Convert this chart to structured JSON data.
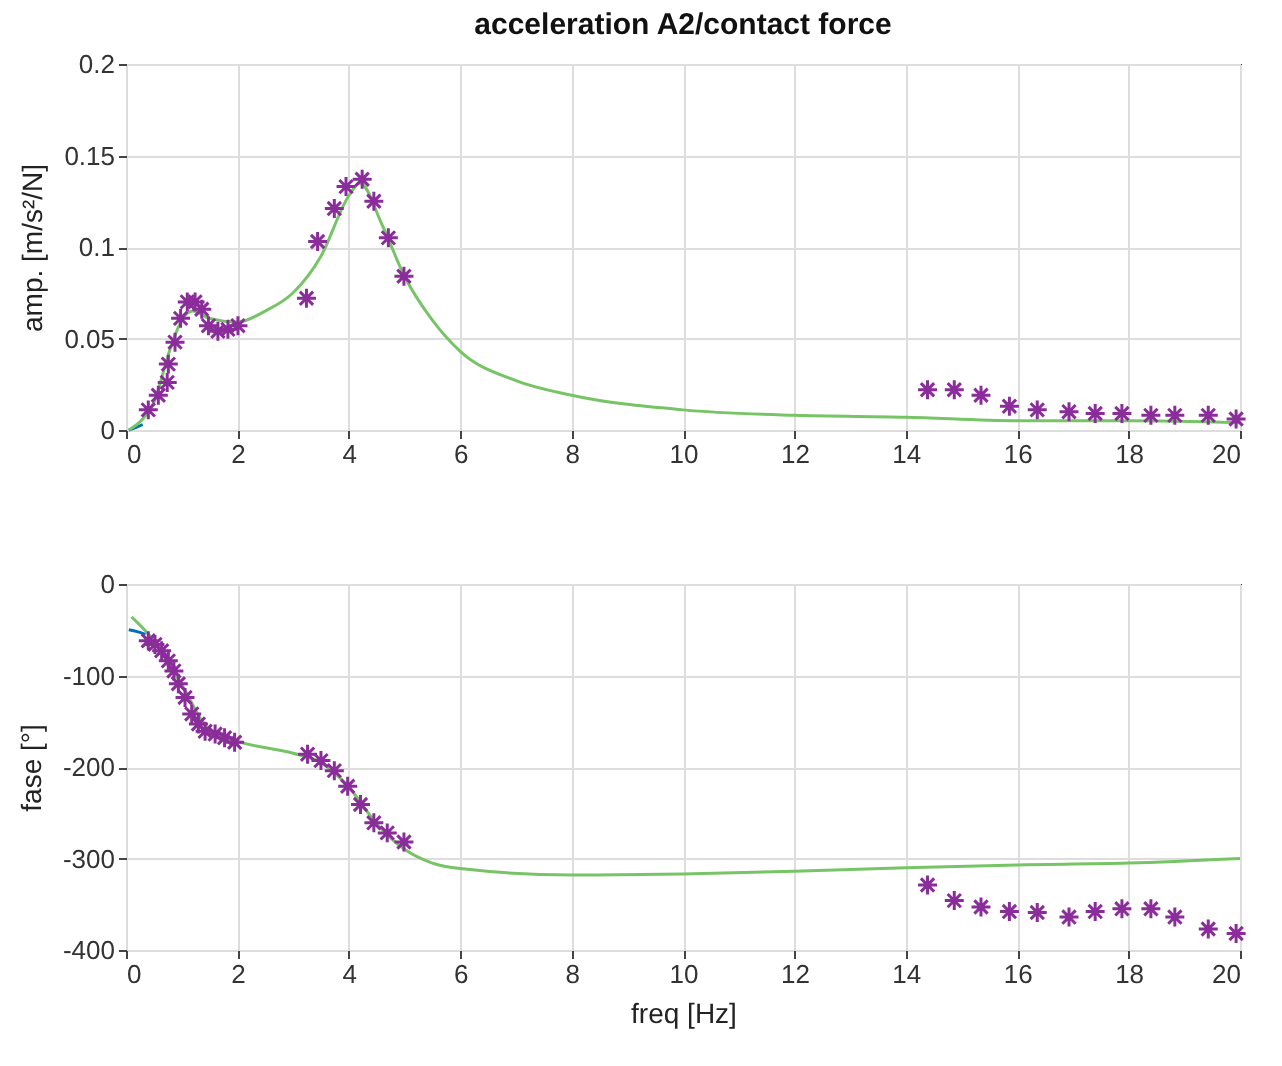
{
  "chart_data": [
    {
      "type": "line",
      "title": "acceleration A2/contact force",
      "ylabel": "amp. [m/s²/N]",
      "xlim": [
        0,
        20
      ],
      "ylim": [
        0,
        0.2
      ],
      "xticks": [
        0,
        2,
        4,
        6,
        8,
        10,
        12,
        14,
        16,
        18,
        20
      ],
      "yticks": [
        0,
        0.05,
        0.1,
        0.15,
        0.2
      ],
      "grid": true,
      "series": [
        {
          "type": "line",
          "color": "#0072bd",
          "x": [
            0.05,
            0.15,
            0.3
          ],
          "values": [
            0.0,
            0.001,
            0.003
          ]
        },
        {
          "type": "line",
          "color": "#77c466",
          "x": [
            0.05,
            0.3,
            0.5,
            0.8,
            1.0,
            1.2,
            1.5,
            2.0,
            2.5,
            3.0,
            3.5,
            4.0,
            4.2,
            4.6,
            5.0,
            5.5,
            6.0,
            7.0,
            8.0,
            10.0,
            12.0,
            14.0,
            16.0,
            18.0,
            20.0
          ],
          "values": [
            0.0,
            0.006,
            0.015,
            0.045,
            0.06,
            0.065,
            0.061,
            0.059,
            0.065,
            0.075,
            0.095,
            0.128,
            0.135,
            0.112,
            0.084,
            0.06,
            0.043,
            0.027,
            0.019,
            0.011,
            0.008,
            0.007,
            0.005,
            0.005,
            0.004
          ]
        },
        {
          "type": "scatter",
          "marker": "cross",
          "color": "#8a2d9a",
          "x": [
            0.4,
            0.58,
            0.74,
            0.76,
            0.88,
            0.98,
            1.1,
            1.24,
            1.36,
            1.48,
            1.65,
            1.83,
            2.01,
            3.24,
            3.44,
            3.74,
            3.95,
            4.24,
            4.45,
            4.71,
            4.99,
            14.39,
            14.87,
            15.35,
            15.86,
            16.36,
            16.93,
            17.4,
            17.88,
            18.4,
            18.83,
            19.43,
            19.93
          ],
          "values": [
            0.011,
            0.019,
            0.026,
            0.036,
            0.048,
            0.061,
            0.07,
            0.07,
            0.066,
            0.057,
            0.054,
            0.055,
            0.057,
            0.072,
            0.103,
            0.121,
            0.133,
            0.137,
            0.125,
            0.105,
            0.084,
            0.022,
            0.022,
            0.019,
            0.013,
            0.011,
            0.01,
            0.009,
            0.009,
            0.008,
            0.008,
            0.008,
            0.006
          ]
        }
      ]
    },
    {
      "type": "line",
      "xlabel": "freq [Hz]",
      "ylabel": "fase [°]",
      "xlim": [
        0,
        20
      ],
      "ylim": [
        -400,
        0
      ],
      "xticks": [
        0,
        2,
        4,
        6,
        8,
        10,
        12,
        14,
        16,
        18,
        20
      ],
      "yticks": [
        -400,
        -300,
        -200,
        -100,
        0
      ],
      "grid": true,
      "series": [
        {
          "type": "line",
          "color": "#0072bd",
          "x": [
            0.05,
            0.2,
            0.35
          ],
          "values": [
            -50,
            -52,
            -55
          ]
        },
        {
          "type": "line",
          "color": "#77c466",
          "x": [
            0.1,
            0.5,
            1.0,
            1.5,
            2.0,
            3.0,
            3.5,
            4.0,
            4.5,
            5.0,
            5.5,
            6.0,
            8.0,
            10.0,
            12.0,
            14.0,
            16.0,
            18.0,
            20.0
          ],
          "values": [
            -36,
            -62,
            -110,
            -160,
            -172,
            -185,
            -195,
            -222,
            -262,
            -290,
            -305,
            -311,
            -318,
            -317,
            -314,
            -310,
            -307,
            -305,
            -300
          ]
        },
        {
          "type": "scatter",
          "marker": "cross",
          "color": "#8a2d9a",
          "x": [
            0.4,
            0.52,
            0.64,
            0.76,
            0.86,
            0.94,
            1.06,
            1.18,
            1.3,
            1.42,
            1.6,
            1.77,
            1.95,
            3.26,
            3.5,
            3.74,
            3.98,
            4.21,
            4.45,
            4.69,
            4.99,
            14.39,
            14.87,
            15.35,
            15.86,
            16.36,
            16.93,
            17.4,
            17.88,
            18.4,
            18.83,
            19.43,
            19.93
          ],
          "values": [
            -62,
            -66,
            -73,
            -84,
            -95,
            -109,
            -124,
            -142,
            -153,
            -161,
            -164,
            -168,
            -173,
            -186,
            -193,
            -204,
            -221,
            -241,
            -261,
            -272,
            -282,
            -329,
            -346,
            -353,
            -358,
            -359,
            -364,
            -358,
            -355,
            -355,
            -364,
            -377,
            -382
          ]
        }
      ]
    }
  ]
}
